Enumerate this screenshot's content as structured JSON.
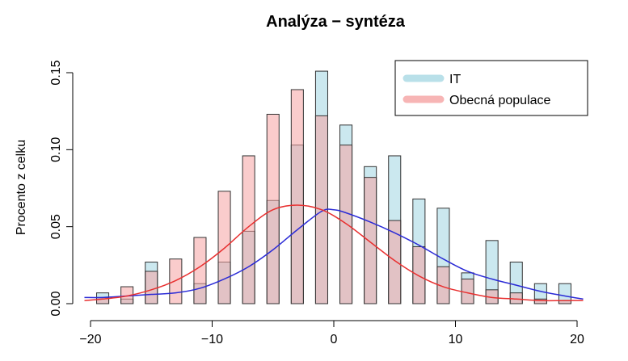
{
  "chart_data": {
    "type": "bar",
    "title": "Analýza − syntéza",
    "xlabel": "",
    "ylabel": "Procento z celku",
    "xlim": [
      -20,
      20
    ],
    "ylim": [
      0,
      0.15
    ],
    "x_ticks": [
      -20,
      -10,
      0,
      10,
      20
    ],
    "x_tick_labels": [
      "−20",
      "−10",
      "0",
      "10",
      "20"
    ],
    "y_ticks": [
      0.0,
      0.05,
      0.1,
      0.15
    ],
    "y_tick_labels": [
      "0.00",
      "0.05",
      "0.10",
      "0.15"
    ],
    "grid": false,
    "legend_position": "top-right",
    "bin_centers": [
      -19,
      -17,
      -15,
      -13,
      -11,
      -9,
      -7,
      -5,
      -3,
      -1,
      1,
      3,
      5,
      7,
      9,
      11,
      13,
      15,
      17,
      19
    ],
    "bar_width": 1.0,
    "series": [
      {
        "name": "IT",
        "fill": "#a8d8e4",
        "values": [
          0.007,
          0.003,
          0.027,
          0.0,
          0.013,
          0.027,
          0.047,
          0.067,
          0.103,
          0.151,
          0.116,
          0.089,
          0.096,
          0.068,
          0.062,
          0.02,
          0.041,
          0.027,
          0.013,
          0.013
        ],
        "density_color": "#2b2bd6",
        "density": [
          [
            -20.5,
            0.004
          ],
          [
            -19,
            0.004
          ],
          [
            -17,
            0.005
          ],
          [
            -15,
            0.006
          ],
          [
            -13,
            0.007
          ],
          [
            -11,
            0.01
          ],
          [
            -9,
            0.016
          ],
          [
            -7,
            0.024
          ],
          [
            -5,
            0.035
          ],
          [
            -3,
            0.048
          ],
          [
            -1,
            0.06
          ],
          [
            0,
            0.061
          ],
          [
            1,
            0.059
          ],
          [
            3,
            0.053
          ],
          [
            5,
            0.046
          ],
          [
            7,
            0.038
          ],
          [
            9,
            0.029
          ],
          [
            11,
            0.021
          ],
          [
            13,
            0.016
          ],
          [
            15,
            0.012
          ],
          [
            17,
            0.008
          ],
          [
            19,
            0.005
          ],
          [
            20.5,
            0.003
          ]
        ]
      },
      {
        "name": "Obecná populace",
        "fill": "#f5a3a3",
        "values": [
          0.004,
          0.011,
          0.021,
          0.029,
          0.043,
          0.073,
          0.096,
          0.123,
          0.139,
          0.122,
          0.103,
          0.082,
          0.054,
          0.037,
          0.024,
          0.016,
          0.009,
          0.007,
          0.003,
          0.002
        ],
        "density_color": "#e83030",
        "density": [
          [
            -20.5,
            0.002
          ],
          [
            -19,
            0.003
          ],
          [
            -17,
            0.005
          ],
          [
            -15,
            0.009
          ],
          [
            -13,
            0.015
          ],
          [
            -11,
            0.024
          ],
          [
            -9,
            0.036
          ],
          [
            -7,
            0.05
          ],
          [
            -5,
            0.061
          ],
          [
            -3,
            0.064
          ],
          [
            -1,
            0.061
          ],
          [
            1,
            0.052
          ],
          [
            3,
            0.04
          ],
          [
            5,
            0.028
          ],
          [
            7,
            0.018
          ],
          [
            9,
            0.011
          ],
          [
            11,
            0.007
          ],
          [
            13,
            0.004
          ],
          [
            15,
            0.003
          ],
          [
            17,
            0.002
          ],
          [
            19,
            0.002
          ],
          [
            20.5,
            0.002
          ]
        ]
      }
    ]
  }
}
